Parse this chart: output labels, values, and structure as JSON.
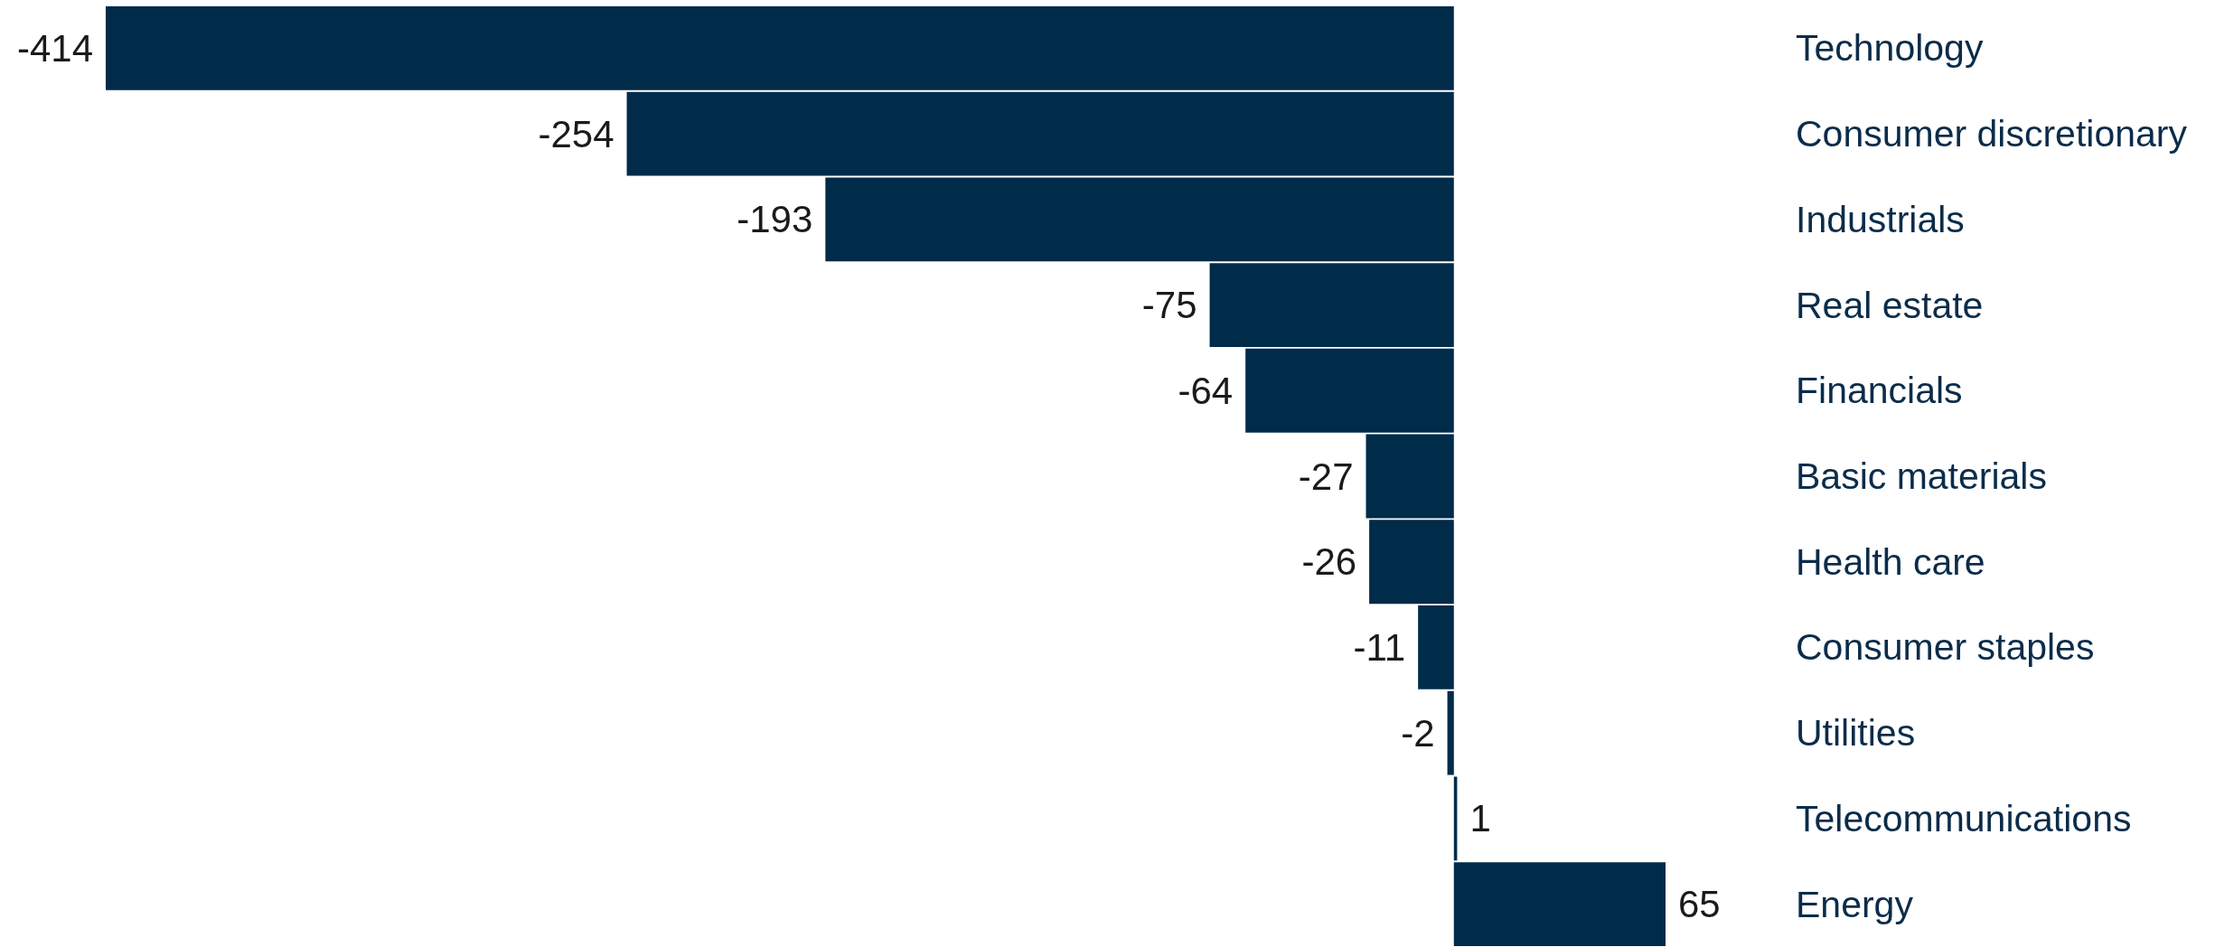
{
  "chart_data": {
    "type": "bar",
    "orientation": "horizontal",
    "categories": [
      "Technology",
      "Consumer discretionary",
      "Industrials",
      "Real estate",
      "Financials",
      "Basic materials",
      "Health care",
      "Consumer staples",
      "Utilities",
      "Telecommunications",
      "Energy"
    ],
    "values": [
      -414,
      -254,
      -193,
      -75,
      -64,
      -27,
      -26,
      -11,
      -2,
      1,
      65
    ],
    "color": "#002b49",
    "data_labels": true
  }
}
